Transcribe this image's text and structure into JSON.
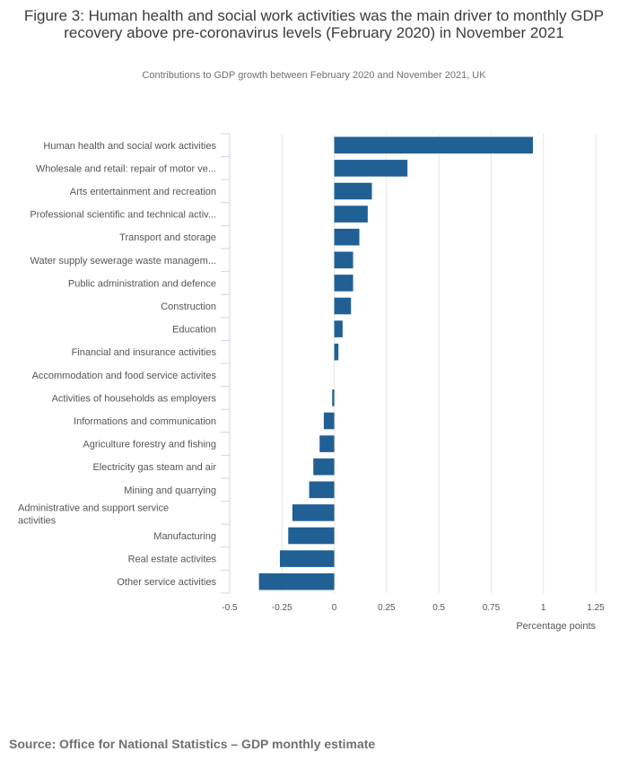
{
  "chart_data": {
    "type": "bar",
    "orientation": "horizontal",
    "title": "Figure 3: Human health and social work activities was the main driver to monthly GDP recovery above pre-coronavirus levels (February 2020) in November 2021",
    "subtitle": "Contributions to GDP growth between February 2020 and November 2021, UK",
    "xlabel": "Percentage points",
    "ylabel": "",
    "xlim": [
      -0.5,
      1.25
    ],
    "ticks": [
      -0.5,
      -0.25,
      0,
      0.25,
      0.5,
      0.75,
      1,
      1.25
    ],
    "tick_labels": [
      "-0.5",
      "-0.25",
      "0",
      "0.25",
      "0.5",
      "0.75",
      "1",
      "1.25"
    ],
    "grid": true,
    "bar_color": "#206095",
    "categories": [
      "Human health and social work activities",
      "Wholesale and retail: repair of motor ve...",
      "Arts entertainment and recreation",
      "Professional scientific and technical activ...",
      "Transport and storage",
      "Water supply sewerage waste managem...",
      "Public administration and defence",
      "Construction",
      "Education",
      "Financial and insurance activities",
      "Accommodation and food service activites",
      "Activities of households as employers",
      "Informations and communication",
      "Agriculture forestry and fishing",
      "Electricity gas steam and air",
      "Mining and quarrying",
      "Administrative and support service activities",
      "Manufacturing",
      "Real estate activites",
      "Other service activities"
    ],
    "values": [
      0.95,
      0.35,
      0.18,
      0.16,
      0.12,
      0.09,
      0.09,
      0.08,
      0.04,
      0.02,
      0.0,
      -0.01,
      -0.05,
      -0.07,
      -0.1,
      -0.12,
      -0.2,
      -0.22,
      -0.26,
      -0.36
    ]
  },
  "source": "Source: Office for National Statistics – GDP monthly estimate"
}
